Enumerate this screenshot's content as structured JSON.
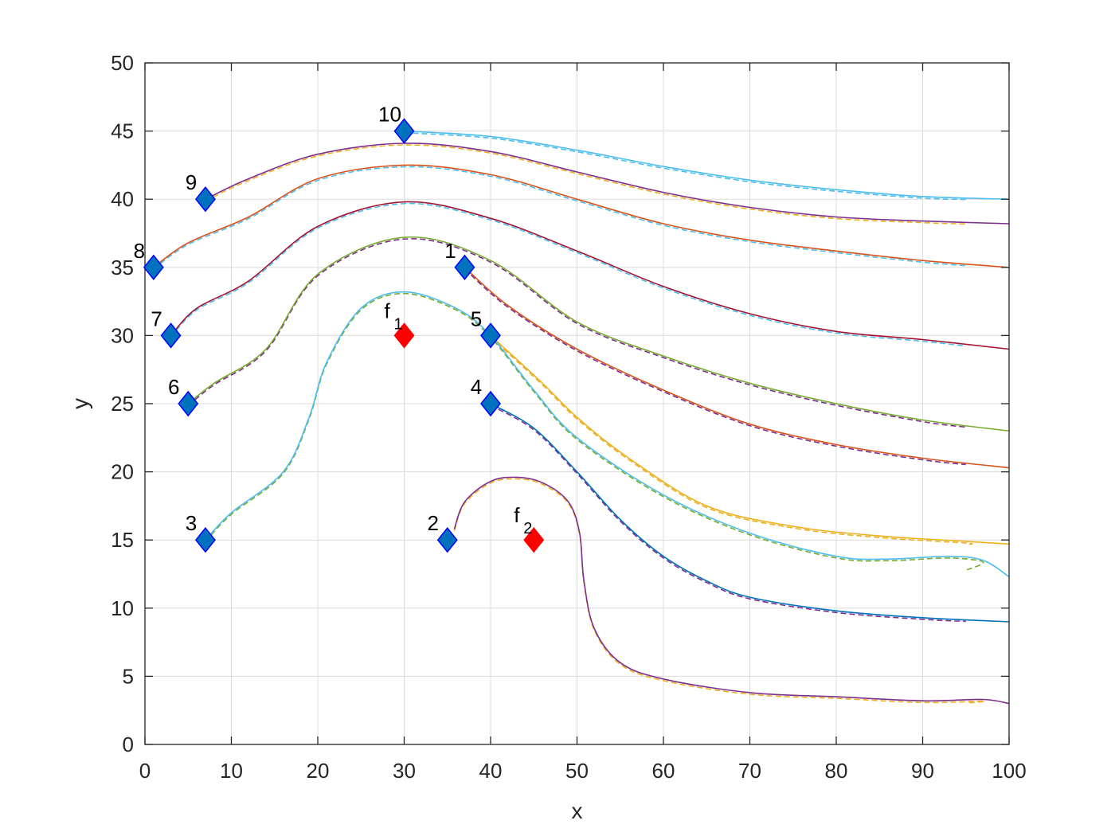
{
  "chart_data": {
    "type": "line",
    "title": "",
    "xlabel": "x",
    "ylabel": "y",
    "xlim": [
      0,
      100
    ],
    "ylim": [
      0,
      50
    ],
    "xticks": [
      0,
      10,
      20,
      30,
      40,
      50,
      60,
      70,
      80,
      90,
      100
    ],
    "yticks": [
      0,
      5,
      10,
      15,
      20,
      25,
      30,
      35,
      40,
      45,
      50
    ],
    "grid": true,
    "agents": [
      {
        "label": "1",
        "x": 37,
        "y": 35
      },
      {
        "label": "2",
        "x": 35,
        "y": 15
      },
      {
        "label": "3",
        "x": 7,
        "y": 15
      },
      {
        "label": "4",
        "x": 40,
        "y": 25
      },
      {
        "label": "5",
        "x": 40,
        "y": 30
      },
      {
        "label": "6",
        "x": 5,
        "y": 25
      },
      {
        "label": "7",
        "x": 3,
        "y": 30
      },
      {
        "label": "8",
        "x": 1,
        "y": 35
      },
      {
        "label": "9",
        "x": 7,
        "y": 40
      },
      {
        "label": "10",
        "x": 30,
        "y": 45
      }
    ],
    "targets": [
      {
        "label": "f",
        "sub": "1",
        "x": 30,
        "y": 30
      },
      {
        "label": "f",
        "sub": "2",
        "x": 45,
        "y": 15
      }
    ],
    "trajectories": [
      {
        "agent": "10",
        "color": "#4DBEEE",
        "dashed_color": "#4DBEEE",
        "points": [
          [
            30,
            45
          ],
          [
            40,
            44.6
          ],
          [
            50,
            43.6
          ],
          [
            60,
            42.4
          ],
          [
            70,
            41.4
          ],
          [
            80,
            40.7
          ],
          [
            90,
            40.2
          ],
          [
            100,
            40
          ]
        ]
      },
      {
        "agent": "9",
        "color": "#7E2F8E",
        "dashed_color": "#EDB120",
        "points": [
          [
            7,
            40
          ],
          [
            12,
            41.5
          ],
          [
            20,
            43.3
          ],
          [
            30,
            44.1
          ],
          [
            40,
            43.5
          ],
          [
            50,
            42
          ],
          [
            60,
            40.5
          ],
          [
            70,
            39.4
          ],
          [
            80,
            38.7
          ],
          [
            90,
            38.4
          ],
          [
            100,
            38.2
          ]
        ]
      },
      {
        "agent": "8",
        "color": "#D95319",
        "dashed_color": "#4DBEEE",
        "points": [
          [
            1,
            35
          ],
          [
            5,
            36.8
          ],
          [
            12,
            38.7
          ],
          [
            20,
            41.5
          ],
          [
            30,
            42.5
          ],
          [
            40,
            41.8
          ],
          [
            50,
            40
          ],
          [
            60,
            38.2
          ],
          [
            70,
            37
          ],
          [
            80,
            36.2
          ],
          [
            90,
            35.5
          ],
          [
            100,
            35
          ]
        ]
      },
      {
        "agent": "7",
        "color": "#A2142F",
        "dashed_color": "#4DBEEE",
        "points": [
          [
            3,
            30
          ],
          [
            6,
            32
          ],
          [
            12,
            34
          ],
          [
            20,
            38
          ],
          [
            30,
            39.8
          ],
          [
            40,
            38.6
          ],
          [
            50,
            36.2
          ],
          [
            60,
            33.6
          ],
          [
            70,
            31.6
          ],
          [
            80,
            30.3
          ],
          [
            90,
            29.7
          ],
          [
            100,
            29
          ]
        ]
      },
      {
        "agent": "6",
        "color": "#77AC30",
        "dashed_color": "#7E2F8E",
        "points": [
          [
            5,
            25
          ],
          [
            8,
            26.5
          ],
          [
            14,
            29
          ],
          [
            20,
            34.5
          ],
          [
            30,
            37.2
          ],
          [
            40,
            35.5
          ],
          [
            50,
            31
          ],
          [
            60,
            28.5
          ],
          [
            70,
            26.5
          ],
          [
            80,
            25
          ],
          [
            90,
            23.8
          ],
          [
            100,
            23
          ]
        ]
      },
      {
        "agent": "1",
        "color": "#D95319",
        "dashed_color": "#7E2F8E",
        "points": [
          [
            37,
            35
          ],
          [
            42,
            32.2
          ],
          [
            50,
            29
          ],
          [
            60,
            26
          ],
          [
            70,
            23.5
          ],
          [
            80,
            22
          ],
          [
            90,
            21
          ],
          [
            100,
            20.3
          ]
        ]
      },
      {
        "agent": "5",
        "color": "#EDB120",
        "dashed_color": "#EDB120",
        "points": [
          [
            40,
            30
          ],
          [
            46,
            26.5
          ],
          [
            50,
            24
          ],
          [
            56,
            21
          ],
          [
            65,
            17.5
          ],
          [
            75,
            16
          ],
          [
            85,
            15.3
          ],
          [
            95,
            14.9
          ],
          [
            100,
            14.7
          ]
        ]
      },
      {
        "agent": "3",
        "color": "#4DBEEE",
        "dashed_color": "#77AC30",
        "points": [
          [
            7,
            15
          ],
          [
            10,
            17
          ],
          [
            16,
            20
          ],
          [
            19,
            24
          ],
          [
            21,
            28
          ],
          [
            25,
            32
          ],
          [
            30,
            33.2
          ],
          [
            36,
            32
          ],
          [
            40,
            30
          ],
          [
            45,
            26
          ],
          [
            50,
            22.5
          ],
          [
            60,
            18.3
          ],
          [
            70,
            15.5
          ],
          [
            80,
            13.8
          ],
          [
            86,
            13.6
          ],
          [
            93,
            13.8
          ],
          [
            97,
            13.5
          ],
          [
            100,
            12.3
          ]
        ]
      },
      {
        "agent": "4",
        "color": "#0072BD",
        "dashed_color": "#7E2F8E",
        "points": [
          [
            40,
            25
          ],
          [
            45,
            23.2
          ],
          [
            50,
            20
          ],
          [
            55,
            16.5
          ],
          [
            60,
            13.8
          ],
          [
            65,
            12
          ],
          [
            70,
            10.8
          ],
          [
            80,
            9.8
          ],
          [
            90,
            9.3
          ],
          [
            100,
            9
          ]
        ]
      },
      {
        "agent": "2",
        "color": "#7E2F8E",
        "dashed_color": "#EDB120",
        "points": [
          [
            35.8,
            15.8
          ],
          [
            37,
            17.8
          ],
          [
            40,
            19.3
          ],
          [
            43,
            19.6
          ],
          [
            46,
            19.2
          ],
          [
            49,
            17.8
          ],
          [
            50.3,
            15.5
          ],
          [
            50.8,
            12
          ],
          [
            52,
            8.5
          ],
          [
            55,
            6
          ],
          [
            60,
            4.8
          ],
          [
            70,
            3.8
          ],
          [
            80,
            3.5
          ],
          [
            90,
            3.2
          ],
          [
            97,
            3.3
          ],
          [
            100,
            3
          ]
        ]
      }
    ]
  }
}
